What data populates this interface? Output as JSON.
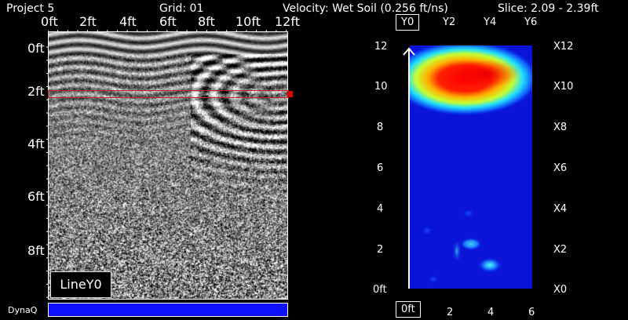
{
  "header": {
    "project": "Project 5",
    "grid": "Grid: 01",
    "velocity": "Velocity: Wet Soil (0.256 ft/ns)",
    "slice": "Slice: 2.09 - 2.39ft"
  },
  "bscan": {
    "x_ticks": [
      "0ft",
      "2ft",
      "4ft",
      "6ft",
      "8ft",
      "10ft",
      "12ft"
    ],
    "depth_labels": [
      "0ft",
      "2ft",
      "4ft",
      "6ft",
      "8ft"
    ],
    "line_label": "LineY0",
    "dyna_label": "DynaQ",
    "slice_line_color": "#cc2020",
    "dyna_color": "#1010ff"
  },
  "cscan": {
    "top_labels": [
      "Y0",
      "Y2",
      "Y4",
      "Y6"
    ],
    "left_labels": [
      "12",
      "10",
      "8",
      "6",
      "4",
      "2",
      "0ft"
    ],
    "right_labels": [
      "X12",
      "X10",
      "X8",
      "X6",
      "X4",
      "X2",
      "X0"
    ],
    "bottom_labels": [
      "0ft",
      "2",
      "4",
      "6"
    ]
  }
}
